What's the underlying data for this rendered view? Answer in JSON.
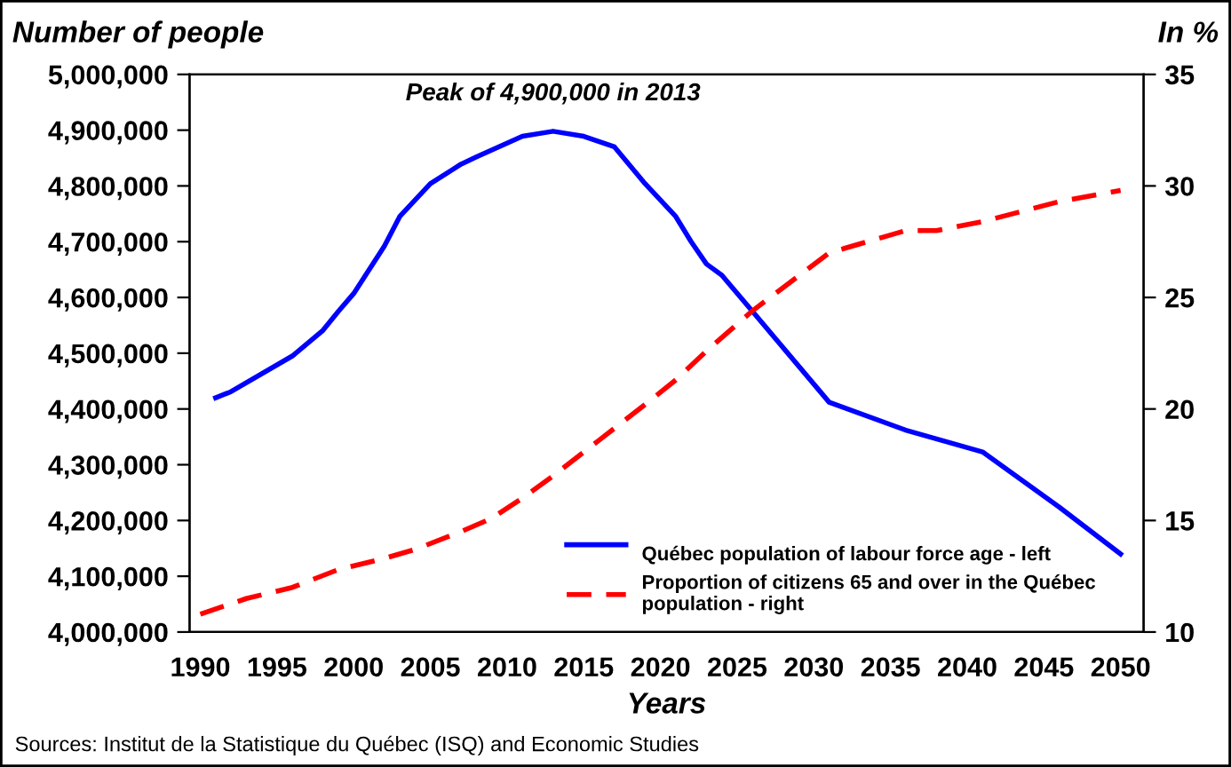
{
  "chart_data": {
    "type": "line",
    "xlabel": "Years",
    "ylabel": "Number of people",
    "y2label": "In %",
    "xlim": [
      1989.3,
      2051.5
    ],
    "xticks": [
      1990,
      1995,
      2000,
      2005,
      2010,
      2015,
      2020,
      2025,
      2030,
      2035,
      2040,
      2045,
      2050
    ],
    "ylim": [
      4000000,
      5000000
    ],
    "yticks": [
      {
        "value": 4000000,
        "label": "4,000,000"
      },
      {
        "value": 4100000,
        "label": "4,100,000"
      },
      {
        "value": 4200000,
        "label": "4,200,000"
      },
      {
        "value": 4300000,
        "label": "4,300,000"
      },
      {
        "value": 4400000,
        "label": "4,400,000"
      },
      {
        "value": 4500000,
        "label": "4,500,000"
      },
      {
        "value": 4600000,
        "label": "4,600,000"
      },
      {
        "value": 4700000,
        "label": "4,700,000"
      },
      {
        "value": 4800000,
        "label": "4,800,000"
      },
      {
        "value": 4900000,
        "label": "4,900,000"
      },
      {
        "value": 5000000,
        "label": "5,000,000"
      }
    ],
    "y2lim": [
      10,
      35
    ],
    "y2ticks": [
      10,
      15,
      20,
      25,
      30,
      35
    ],
    "series": [
      {
        "name": "Québec population of labour force age - left",
        "color": "#0000ff",
        "line_style": "solid",
        "x": [
          1991,
          1992,
          1996,
          1998,
          1999,
          2000,
          2002,
          2003,
          2005,
          2007,
          2008,
          2011,
          2013,
          2015,
          2017,
          2019,
          2021,
          2022,
          2023,
          2024,
          2026,
          2031,
          2036,
          2041,
          2046,
          2050
        ],
        "values": [
          4420000,
          4431000,
          4495000,
          4541000,
          4575000,
          4607000,
          4692000,
          4745000,
          4804000,
          4839000,
          4852000,
          4889000,
          4898000,
          4889000,
          4870000,
          4804000,
          4745000,
          4700000,
          4660000,
          4640000,
          4575000,
          4412000,
          4362000,
          4323000,
          4224000,
          4140000
        ]
      },
      {
        "name": "Proportion of citizens 65 and over in the Québec population - right",
        "color": "#ff0000",
        "line_style": "dashed",
        "axis": "y2",
        "x": [
          1990,
          1993,
          1996,
          1999,
          2002,
          2004,
          2007,
          2009,
          2011,
          2013,
          2016,
          2019,
          2021,
          2023,
          2026,
          2031,
          2032,
          2036,
          2038,
          2041,
          2046,
          2050
        ],
        "values": [
          10.8,
          11.5,
          12.0,
          12.8,
          13.3,
          13.7,
          14.5,
          15.1,
          16.0,
          17.0,
          18.6,
          20.2,
          21.3,
          22.6,
          24.4,
          27.0,
          27.2,
          28.0,
          28.0,
          28.4,
          29.3,
          29.8
        ]
      }
    ],
    "annotations": [
      {
        "text": "Peak of 4,900,000 in 2013",
        "x": 2013,
        "y": 4900000
      },
      "Sources: Institut de la Statistique du Québec (ISQ) and Economic Studies"
    ],
    "legend": "lower right",
    "marker": "none",
    "grid": false
  }
}
